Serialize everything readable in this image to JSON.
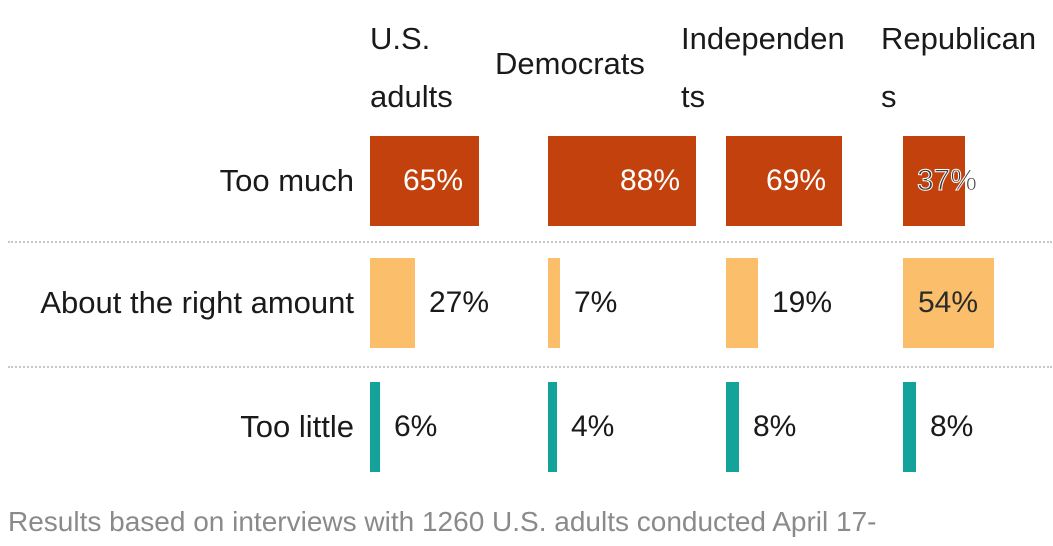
{
  "chart_data": {
    "type": "bar",
    "title": "",
    "columns": [
      {
        "name_lines": [
          "U.S.",
          "adults"
        ]
      },
      {
        "name_lines": [
          "Democrats"
        ]
      },
      {
        "name_lines": [
          "Independen",
          "ts"
        ]
      },
      {
        "name_lines": [
          "Republican",
          "s"
        ]
      }
    ],
    "categories": [
      "Too much",
      "About the right amount",
      "Too little"
    ],
    "series": [
      {
        "name": "U.S. adults",
        "values": [
          65,
          27,
          6
        ]
      },
      {
        "name": "Democrats",
        "values": [
          88,
          7,
          4
        ]
      },
      {
        "name": "Independents",
        "values": [
          69,
          19,
          8
        ]
      },
      {
        "name": "Republicans",
        "values": [
          37,
          54,
          8
        ]
      }
    ],
    "value_labels": [
      [
        "65%",
        "27%",
        "6%"
      ],
      [
        "88%",
        "7%",
        "4%"
      ],
      [
        "69%",
        "19%",
        "8%"
      ],
      [
        "37%",
        "54%",
        "8%"
      ]
    ],
    "colors": [
      "#c2410c",
      "#fbbf6b",
      "#14a39a"
    ],
    "grid": false,
    "legend": "none"
  },
  "footnote": "Results based on interviews with 1260 U.S. adults conducted April 17-"
}
